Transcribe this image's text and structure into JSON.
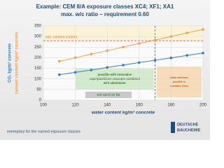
{
  "chart_data": {
    "type": "line",
    "title": "Example: CEM II/A exposure classes XC4; XF1; XA1",
    "subtitle": "max. w/c ratio – requirement 0.60",
    "xlabel": "water content kg/m³ concrete",
    "x": [
      110,
      120,
      130,
      140,
      150,
      160,
      170,
      180,
      190,
      200
    ],
    "series": [
      {
        "name": "cement content kg/m³ concrete",
        "color": "#f0a050",
        "values": [
          183,
          200,
          217,
          233,
          250,
          267,
          283,
          300,
          317,
          333
        ]
      },
      {
        "name": "CO₂ kg/m³ concrete",
        "color": "#2f7fc8",
        "values": [
          120,
          131,
          142,
          154,
          165,
          177,
          188,
          199,
          211,
          222
        ]
      }
    ],
    "xlim": [
      100,
      200
    ],
    "xticks": [
      100,
      120,
      140,
      160,
      180,
      200
    ],
    "ylim": [
      0,
      350
    ],
    "yticks": [
      0,
      50,
      100,
      150,
      200,
      250,
      300,
      350
    ],
    "grid": true,
    "reference_line": {
      "value": 280,
      "label": "min. cement content",
      "color": "#e05a4a"
    },
    "threshold_x": 170,
    "annotations": [
      "possible with innovative superplasticizer concepts combined with admixtures",
      "not used so far",
      "today maximum possible in normative terms"
    ],
    "footer": "exemplary for the named exposure classes",
    "logo": [
      "DEUTSCHE",
      "BAUCHEMIE"
    ]
  }
}
